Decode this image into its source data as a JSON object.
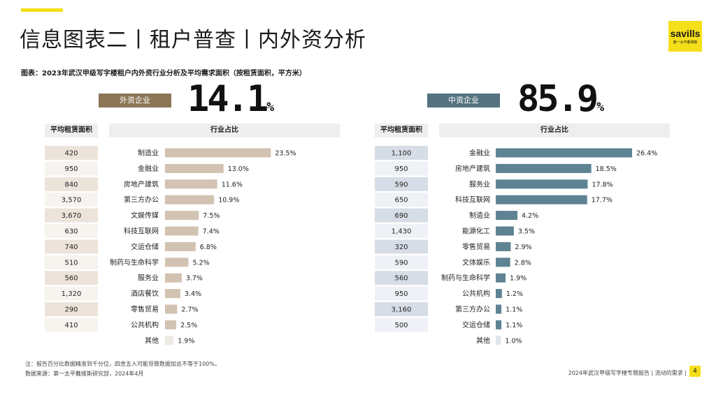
{
  "page": {
    "title": "信息图表二丨租户普查丨内外资分析",
    "subtitle": "图表：2023年武汉甲级写字楼租户内外资行业分析及平均需求面积（按租赁面积，平方米）",
    "logo": {
      "wordmark": "savills",
      "tagline": "第一太平戴维斯"
    },
    "footnote_1": "注：报告百分比数据精准到千分位，四舍五入可能导致数据加总不等于100%。",
    "footnote_2": "数据来源：第一太平戴维斯研究部，2024年4月",
    "footer_text": "2024年武汉甲级写字楼专题报告 | 流动的需求 |",
    "page_number": "4",
    "colors": {
      "accent_yellow": "#f5df1a",
      "foreign_brown": "#8b7656",
      "foreign_bar": "#d2c2b1",
      "domestic_teal": "#54727f",
      "domestic_bar": "#5e8393"
    }
  },
  "panels": {
    "foreign": {
      "badge": "外资企业",
      "share_value": "14.1",
      "share_unit": "%",
      "area_header": "平均租赁面积",
      "industry_header": "行业占比"
    },
    "domestic": {
      "badge": "中资企业",
      "share_value": "85.9",
      "share_unit": "%",
      "area_header": "平均租赁面积",
      "industry_header": "行业占比"
    }
  },
  "chart_data": [
    {
      "type": "bar",
      "orientation": "horizontal",
      "panel": "外资企业",
      "categories": [
        "制造业",
        "金融业",
        "房地产建筑",
        "第三方办公",
        "文娱传媒",
        "科技互联网",
        "交运仓储",
        "制药与生命科学",
        "服务业",
        "酒店餐饮",
        "零售贸易",
        "公共机构",
        "其他"
      ],
      "values": [
        23.5,
        13.0,
        11.6,
        10.9,
        7.5,
        7.4,
        6.8,
        5.2,
        3.7,
        3.4,
        2.7,
        2.5,
        1.9
      ],
      "value_labels": [
        "23.5%",
        "13.0%",
        "11.6%",
        "10.9%",
        "7.5%",
        "7.4%",
        "6.8%",
        "5.2%",
        "3.7%",
        "3.4%",
        "2.7%",
        "2.5%",
        "1.9%"
      ],
      "avg_area_labels": [
        "420",
        "950",
        "840",
        "3,570",
        "3,670",
        "630",
        "740",
        "510",
        "560",
        "1,320",
        "290",
        "410",
        ""
      ],
      "xlim": [
        0,
        26.4
      ]
    },
    {
      "type": "bar",
      "orientation": "horizontal",
      "panel": "中资企业",
      "categories": [
        "金融业",
        "房地产建筑",
        "服务业",
        "科技互联网",
        "制造业",
        "能源化工",
        "零售贸易",
        "文体娱乐",
        "制药与生命科学",
        "公共机构",
        "第三方办公",
        "交运仓储",
        "其他"
      ],
      "values": [
        26.4,
        18.5,
        17.8,
        17.7,
        4.2,
        3.5,
        2.9,
        2.8,
        1.9,
        1.2,
        1.1,
        1.1,
        1.0
      ],
      "value_labels": [
        "26.4%",
        "18.5%",
        "17.8%",
        "17.7%",
        "4.2%",
        "3.5%",
        "2.9%",
        "2.8%",
        "1.9%",
        "1.2%",
        "1.1%",
        "1.1%",
        "1.0%"
      ],
      "avg_area_labels": [
        "1,100",
        "950",
        "590",
        "650",
        "690",
        "1,430",
        "320",
        "590",
        "560",
        "950",
        "3,160",
        "500",
        ""
      ],
      "xlim": [
        0,
        26.4
      ]
    }
  ]
}
